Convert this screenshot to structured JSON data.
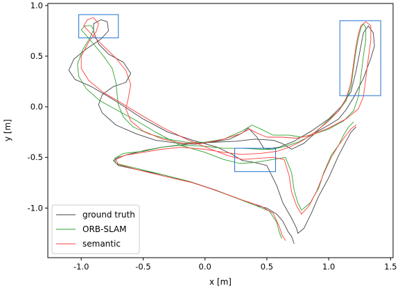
{
  "chart_data": {
    "type": "line",
    "title": "",
    "xlabel": "x [m]",
    "ylabel": "y [m]",
    "xlim": [
      -1.27,
      1.52
    ],
    "ylim": [
      -1.49,
      1.02
    ],
    "xticks": [
      "-1.0",
      "-0.5",
      "0.0",
      "0.5",
      "1.0",
      "1.5"
    ],
    "yticks": [
      "1.0",
      "0.5",
      "0.0",
      "-0.5",
      "-1.0"
    ],
    "xtick_values": [
      -1.0,
      -0.5,
      0.0,
      0.5,
      1.0,
      1.5
    ],
    "ytick_values": [
      1.0,
      0.5,
      0.0,
      -0.5,
      -1.0
    ],
    "grid": false,
    "legend_position": "lower-left",
    "series": [
      {
        "name": "ground truth",
        "color": "#404040",
        "points": [
          [
            0.72,
            -1.35
          ],
          [
            0.7,
            -1.28
          ],
          [
            0.67,
            -1.23
          ],
          [
            0.63,
            -1.13
          ],
          [
            0.58,
            -1.06
          ],
          [
            0.5,
            -1.0
          ],
          [
            0.4,
            -0.97
          ],
          [
            0.25,
            -0.9
          ],
          [
            0.08,
            -0.82
          ],
          [
            -0.12,
            -0.74
          ],
          [
            -0.35,
            -0.67
          ],
          [
            -0.55,
            -0.62
          ],
          [
            -0.7,
            -0.58
          ],
          [
            -0.74,
            -0.53
          ],
          [
            -0.7,
            -0.5
          ],
          [
            -0.62,
            -0.47
          ],
          [
            -0.48,
            -0.43
          ],
          [
            -0.35,
            -0.4
          ],
          [
            -0.22,
            -0.38
          ],
          [
            -0.08,
            -0.36
          ],
          [
            0.08,
            -0.35
          ],
          [
            0.25,
            -0.34
          ],
          [
            0.4,
            -0.32
          ],
          [
            0.55,
            -0.33
          ],
          [
            0.62,
            -0.36
          ],
          [
            0.7,
            -0.42
          ],
          [
            0.8,
            -0.36
          ],
          [
            0.9,
            -0.25
          ],
          [
            1.0,
            -0.18
          ],
          [
            1.08,
            -0.12
          ],
          [
            1.14,
            -0.03
          ],
          [
            1.2,
            0.09
          ],
          [
            1.28,
            0.28
          ],
          [
            1.34,
            0.48
          ],
          [
            1.37,
            0.6
          ],
          [
            1.36,
            0.73
          ],
          [
            1.32,
            0.8
          ],
          [
            1.28,
            0.73
          ],
          [
            1.26,
            0.6
          ],
          [
            1.22,
            0.35
          ],
          [
            1.18,
            0.15
          ],
          [
            1.1,
            0.0
          ],
          [
            1.0,
            -0.12
          ],
          [
            0.86,
            -0.24
          ],
          [
            0.72,
            -0.34
          ],
          [
            0.6,
            -0.4
          ],
          [
            0.48,
            -0.42
          ],
          [
            0.42,
            -0.3
          ],
          [
            0.35,
            -0.21
          ],
          [
            0.3,
            -0.26
          ],
          [
            0.2,
            -0.32
          ],
          [
            0.05,
            -0.35
          ],
          [
            -0.08,
            -0.37
          ],
          [
            -0.22,
            -0.36
          ],
          [
            -0.4,
            -0.33
          ],
          [
            -0.55,
            -0.27
          ],
          [
            -0.72,
            -0.18
          ],
          [
            -0.83,
            -0.06
          ],
          [
            -0.86,
            0.02
          ],
          [
            -0.83,
            0.12
          ],
          [
            -0.74,
            0.2
          ],
          [
            -0.64,
            0.24
          ],
          [
            -0.6,
            0.33
          ],
          [
            -0.66,
            0.44
          ],
          [
            -0.78,
            0.52
          ],
          [
            -0.86,
            0.62
          ],
          [
            -0.9,
            0.74
          ],
          [
            -0.9,
            0.82
          ],
          [
            -0.84,
            0.86
          ],
          [
            -0.79,
            0.84
          ],
          [
            -0.78,
            0.75
          ],
          [
            -0.84,
            0.67
          ],
          [
            -0.96,
            0.57
          ],
          [
            -1.06,
            0.47
          ],
          [
            -1.1,
            0.36
          ],
          [
            -1.05,
            0.27
          ],
          [
            -0.92,
            0.2
          ],
          [
            -0.78,
            0.1
          ],
          [
            -0.65,
            0.0
          ],
          [
            -0.5,
            -0.12
          ],
          [
            -0.3,
            -0.25
          ],
          [
            -0.1,
            -0.33
          ],
          [
            0.1,
            -0.4
          ],
          [
            0.22,
            -0.47
          ],
          [
            0.3,
            -0.53
          ],
          [
            0.4,
            -0.55
          ],
          [
            0.5,
            -0.58
          ],
          [
            0.58,
            -0.78
          ],
          [
            0.63,
            -0.95
          ],
          [
            0.7,
            -1.1
          ],
          [
            0.74,
            -1.2
          ],
          [
            0.75,
            -1.25
          ],
          [
            0.8,
            -1.2
          ],
          [
            0.86,
            -1.05
          ],
          [
            0.92,
            -0.88
          ],
          [
            1.0,
            -0.7
          ],
          [
            1.08,
            -0.48
          ],
          [
            1.14,
            -0.34
          ],
          [
            1.18,
            -0.25
          ],
          [
            1.22,
            -0.2
          ]
        ]
      },
      {
        "name": "ORB-SLAM",
        "color": "#2ca02c",
        "points": [
          [
            0.62,
            -1.3
          ],
          [
            0.6,
            -1.24
          ],
          [
            0.58,
            -1.14
          ],
          [
            0.52,
            -1.03
          ],
          [
            0.4,
            -0.97
          ],
          [
            0.25,
            -0.9
          ],
          [
            0.05,
            -0.81
          ],
          [
            -0.15,
            -0.73
          ],
          [
            -0.38,
            -0.66
          ],
          [
            -0.58,
            -0.6
          ],
          [
            -0.72,
            -0.56
          ],
          [
            -0.73,
            -0.51
          ],
          [
            -0.66,
            -0.46
          ],
          [
            -0.5,
            -0.44
          ],
          [
            -0.35,
            -0.4
          ],
          [
            -0.2,
            -0.38
          ],
          [
            0.0,
            -0.39
          ],
          [
            0.15,
            -0.41
          ],
          [
            0.3,
            -0.41
          ],
          [
            0.45,
            -0.42
          ],
          [
            0.55,
            -0.42
          ],
          [
            0.65,
            -0.39
          ],
          [
            0.75,
            -0.35
          ],
          [
            0.88,
            -0.27
          ],
          [
            0.98,
            -0.15
          ],
          [
            1.08,
            -0.04
          ],
          [
            1.14,
            0.06
          ],
          [
            1.18,
            0.2
          ],
          [
            1.2,
            0.38
          ],
          [
            1.22,
            0.55
          ],
          [
            1.24,
            0.68
          ],
          [
            1.26,
            0.78
          ],
          [
            1.28,
            0.82
          ],
          [
            1.3,
            0.78
          ],
          [
            1.3,
            0.66
          ],
          [
            1.28,
            0.5
          ],
          [
            1.26,
            0.3
          ],
          [
            1.24,
            0.1
          ],
          [
            1.2,
            -0.04
          ],
          [
            1.12,
            -0.14
          ],
          [
            1.0,
            -0.22
          ],
          [
            0.88,
            -0.27
          ],
          [
            0.78,
            -0.3
          ],
          [
            0.68,
            -0.28
          ],
          [
            0.55,
            -0.28
          ],
          [
            0.45,
            -0.22
          ],
          [
            0.38,
            -0.18
          ],
          [
            0.3,
            -0.24
          ],
          [
            0.15,
            -0.32
          ],
          [
            0.0,
            -0.35
          ],
          [
            -0.15,
            -0.35
          ],
          [
            -0.3,
            -0.32
          ],
          [
            -0.45,
            -0.27
          ],
          [
            -0.58,
            -0.2
          ],
          [
            -0.66,
            -0.1
          ],
          [
            -0.7,
            0.02
          ],
          [
            -0.71,
            0.12
          ],
          [
            -0.72,
            0.24
          ],
          [
            -0.75,
            0.38
          ],
          [
            -0.82,
            0.5
          ],
          [
            -0.9,
            0.62
          ],
          [
            -0.97,
            0.72
          ],
          [
            -1.0,
            0.76
          ],
          [
            -0.97,
            0.8
          ],
          [
            -0.92,
            0.8
          ],
          [
            -0.9,
            0.76
          ],
          [
            -0.93,
            0.68
          ],
          [
            -0.99,
            0.56
          ],
          [
            -1.03,
            0.42
          ],
          [
            -1.02,
            0.3
          ],
          [
            -0.96,
            0.18
          ],
          [
            -0.85,
            0.06
          ],
          [
            -0.7,
            -0.04
          ],
          [
            -0.55,
            -0.14
          ],
          [
            -0.4,
            -0.25
          ],
          [
            -0.2,
            -0.38
          ],
          [
            0.0,
            -0.45
          ],
          [
            0.15,
            -0.52
          ],
          [
            0.28,
            -0.56
          ],
          [
            0.4,
            -0.55
          ],
          [
            0.55,
            -0.52
          ],
          [
            0.65,
            -0.5
          ],
          [
            0.7,
            -0.65
          ],
          [
            0.72,
            -0.82
          ],
          [
            0.75,
            -0.95
          ],
          [
            0.78,
            -1.02
          ],
          [
            0.85,
            -0.95
          ],
          [
            0.92,
            -0.8
          ],
          [
            0.96,
            -0.65
          ],
          [
            1.02,
            -0.48
          ],
          [
            1.08,
            -0.38
          ],
          [
            1.12,
            -0.28
          ],
          [
            1.16,
            -0.2
          ],
          [
            1.2,
            -0.15
          ]
        ]
      },
      {
        "name": "semantic",
        "color": "#ff3b3b",
        "points": [
          [
            0.65,
            -1.32
          ],
          [
            0.62,
            -1.26
          ],
          [
            0.6,
            -1.18
          ],
          [
            0.55,
            -1.05
          ],
          [
            0.45,
            -0.98
          ],
          [
            0.3,
            -0.92
          ],
          [
            0.1,
            -0.83
          ],
          [
            -0.1,
            -0.75
          ],
          [
            -0.35,
            -0.68
          ],
          [
            -0.55,
            -0.62
          ],
          [
            -0.7,
            -0.57
          ],
          [
            -0.72,
            -0.52
          ],
          [
            -0.65,
            -0.48
          ],
          [
            -0.5,
            -0.45
          ],
          [
            -0.35,
            -0.42
          ],
          [
            -0.2,
            -0.4
          ],
          [
            0.0,
            -0.42
          ],
          [
            0.15,
            -0.45
          ],
          [
            0.3,
            -0.47
          ],
          [
            0.45,
            -0.46
          ],
          [
            0.58,
            -0.44
          ],
          [
            0.68,
            -0.4
          ],
          [
            0.78,
            -0.34
          ],
          [
            0.9,
            -0.24
          ],
          [
            1.0,
            -0.14
          ],
          [
            1.08,
            -0.04
          ],
          [
            1.14,
            0.08
          ],
          [
            1.18,
            0.24
          ],
          [
            1.2,
            0.42
          ],
          [
            1.22,
            0.6
          ],
          [
            1.24,
            0.72
          ],
          [
            1.26,
            0.8
          ],
          [
            1.3,
            0.84
          ],
          [
            1.34,
            0.8
          ],
          [
            1.34,
            0.66
          ],
          [
            1.32,
            0.48
          ],
          [
            1.3,
            0.28
          ],
          [
            1.28,
            0.1
          ],
          [
            1.24,
            -0.02
          ],
          [
            1.14,
            -0.12
          ],
          [
            1.0,
            -0.21
          ],
          [
            0.86,
            -0.28
          ],
          [
            0.74,
            -0.31
          ],
          [
            0.62,
            -0.3
          ],
          [
            0.5,
            -0.3
          ],
          [
            0.42,
            -0.26
          ],
          [
            0.36,
            -0.22
          ],
          [
            0.28,
            -0.27
          ],
          [
            0.12,
            -0.33
          ],
          [
            -0.02,
            -0.36
          ],
          [
            -0.18,
            -0.36
          ],
          [
            -0.34,
            -0.32
          ],
          [
            -0.5,
            -0.24
          ],
          [
            -0.6,
            -0.14
          ],
          [
            -0.64,
            -0.02
          ],
          [
            -0.62,
            0.08
          ],
          [
            -0.6,
            0.22
          ],
          [
            -0.64,
            0.36
          ],
          [
            -0.72,
            0.48
          ],
          [
            -0.82,
            0.6
          ],
          [
            -0.92,
            0.72
          ],
          [
            -0.98,
            0.8
          ],
          [
            -0.95,
            0.86
          ],
          [
            -0.9,
            0.88
          ],
          [
            -0.86,
            0.82
          ],
          [
            -0.88,
            0.74
          ],
          [
            -0.94,
            0.64
          ],
          [
            -1.0,
            0.5
          ],
          [
            -1.0,
            0.38
          ],
          [
            -0.94,
            0.26
          ],
          [
            -0.82,
            0.14
          ],
          [
            -0.68,
            0.04
          ],
          [
            -0.52,
            -0.08
          ],
          [
            -0.35,
            -0.2
          ],
          [
            -0.15,
            -0.32
          ],
          [
            0.05,
            -0.42
          ],
          [
            0.18,
            -0.48
          ],
          [
            0.3,
            -0.52
          ],
          [
            0.42,
            -0.51
          ],
          [
            0.55,
            -0.5
          ],
          [
            0.64,
            -0.52
          ],
          [
            0.68,
            -0.68
          ],
          [
            0.7,
            -0.84
          ],
          [
            0.74,
            -0.98
          ],
          [
            0.78,
            -1.06
          ],
          [
            0.84,
            -0.98
          ],
          [
            0.9,
            -0.84
          ],
          [
            0.96,
            -0.66
          ],
          [
            1.02,
            -0.5
          ],
          [
            1.08,
            -0.38
          ],
          [
            1.14,
            -0.28
          ],
          [
            1.18,
            -0.22
          ],
          [
            1.22,
            -0.18
          ]
        ]
      }
    ],
    "highlight_boxes": [
      {
        "x": [
          -1.02,
          -0.7
        ],
        "y": [
          0.68,
          0.91
        ]
      },
      {
        "x": [
          1.09,
          1.42
        ],
        "y": [
          0.11,
          0.85
        ]
      },
      {
        "x": [
          0.24,
          0.57
        ],
        "y": [
          -0.64,
          -0.41
        ]
      }
    ],
    "highlight_color": "#1f6fd0"
  }
}
